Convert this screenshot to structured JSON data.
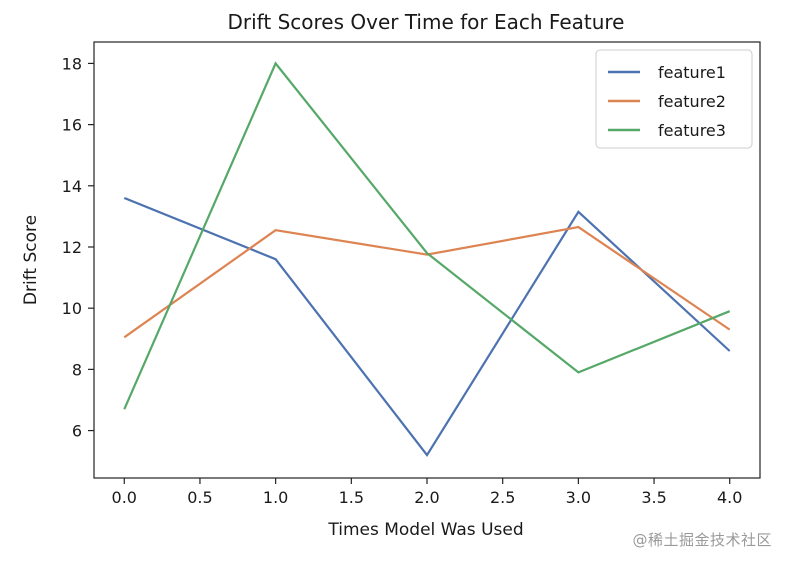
{
  "chart_data": {
    "type": "line",
    "title": "Drift Scores Over Time for Each Feature",
    "xlabel": "Times Model Was Used",
    "ylabel": "Drift Score",
    "x": [
      0,
      1,
      2,
      3,
      4
    ],
    "xlim": [
      -0.2,
      4.2
    ],
    "ylim": [
      4.45,
      18.7
    ],
    "xticks": [
      "0.0",
      "0.5",
      "1.0",
      "1.5",
      "2.0",
      "2.5",
      "3.0",
      "3.5",
      "4.0"
    ],
    "xtick_values": [
      0,
      0.5,
      1,
      1.5,
      2,
      2.5,
      3,
      3.5,
      4
    ],
    "yticks": [
      "6",
      "8",
      "10",
      "12",
      "14",
      "16",
      "18"
    ],
    "ytick_values": [
      6,
      8,
      10,
      12,
      14,
      16,
      18
    ],
    "grid": false,
    "legend_position": "top-right",
    "series": [
      {
        "name": "feature1",
        "color": "#4c72b0",
        "values": [
          13.6,
          11.6,
          5.2,
          13.15,
          8.6
        ]
      },
      {
        "name": "feature2",
        "color": "#dd8452",
        "values": [
          9.05,
          12.55,
          11.75,
          12.65,
          9.3
        ]
      },
      {
        "name": "feature3",
        "color": "#55a868",
        "values": [
          6.7,
          18.0,
          11.8,
          7.9,
          9.9
        ]
      }
    ]
  },
  "watermark": "@稀土掘金技术社区"
}
